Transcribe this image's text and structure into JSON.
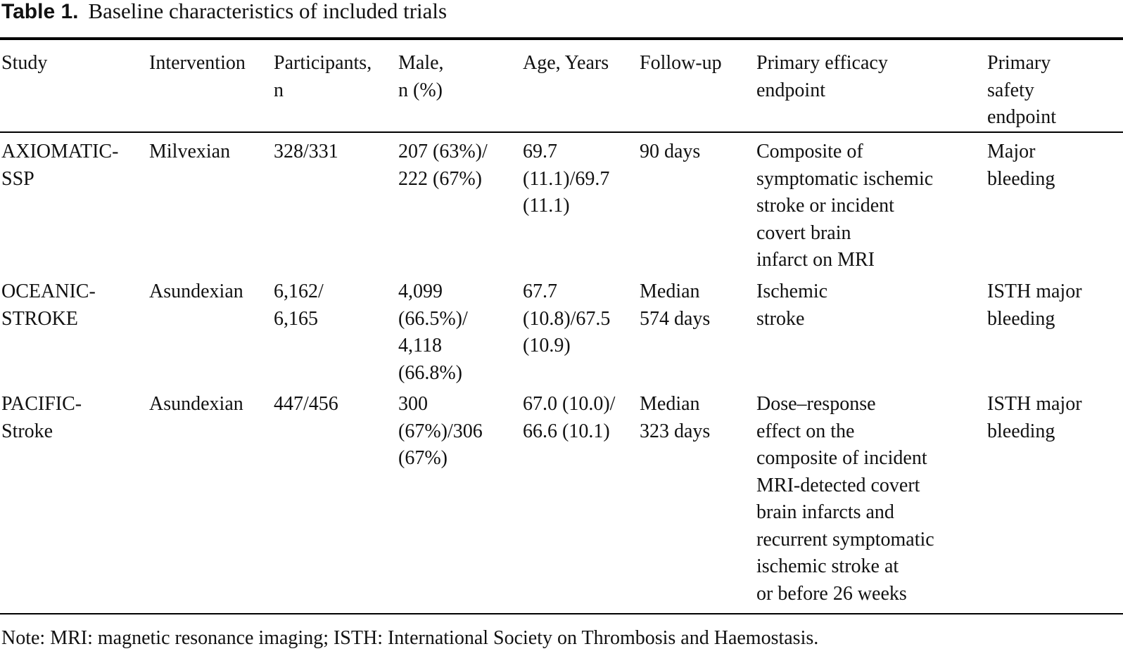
{
  "caption": {
    "label": "Table 1.",
    "title": "Baseline characteristics of included trials"
  },
  "table": {
    "columns": [
      [
        "Study"
      ],
      [
        "Intervention"
      ],
      [
        "Participants,",
        "n"
      ],
      [
        "Male,",
        "n (%)"
      ],
      [
        "Age, Years"
      ],
      [
        "Follow-up"
      ],
      [
        "Primary efficacy",
        "endpoint"
      ],
      [
        "Primary",
        "safety",
        "endpoint"
      ]
    ],
    "rows": [
      {
        "study": [
          "AXIOMATIC-",
          "SSP"
        ],
        "intervention": [
          "Milvexian"
        ],
        "participants": [
          "328/331"
        ],
        "male": [
          "207 (63%)/",
          "222 (67%)"
        ],
        "age": [
          "69.7",
          "(11.1)/69.7",
          "(11.1)"
        ],
        "followup": [
          "90 days"
        ],
        "efficacy": [
          "Composite of",
          "symptomatic ischemic",
          "stroke or incident",
          "covert brain",
          "infarct on MRI"
        ],
        "safety": [
          "Major",
          "bleeding"
        ]
      },
      {
        "study": [
          "OCEANIC-",
          "STROKE"
        ],
        "intervention": [
          "Asundexian"
        ],
        "participants": [
          "6,162/",
          "6,165"
        ],
        "male": [
          "4,099",
          "(66.5%)/",
          "4,118",
          "(66.8%)"
        ],
        "age": [
          "67.7",
          "(10.8)/67.5",
          "(10.9)"
        ],
        "followup": [
          "Median",
          "574 days"
        ],
        "efficacy": [
          "Ischemic",
          "stroke"
        ],
        "safety": [
          "ISTH major",
          "bleeding"
        ]
      },
      {
        "study": [
          "PACIFIC-",
          "Stroke"
        ],
        "intervention": [
          "Asundexian"
        ],
        "participants": [
          "447/456"
        ],
        "male": [
          "300",
          "(67%)/306",
          "(67%)"
        ],
        "age": [
          "67.0 (10.0)/",
          "66.6 (10.1)"
        ],
        "followup": [
          "Median",
          "323 days"
        ],
        "efficacy": [
          "Dose–response",
          "effect on the",
          "composite of incident",
          "MRI-detected covert",
          "brain infarcts and",
          "recurrent symptomatic",
          "ischemic stroke at",
          "or before 26 weeks"
        ],
        "safety": [
          "ISTH major",
          "bleeding"
        ]
      }
    ]
  },
  "note": "Note: MRI: magnetic resonance imaging; ISTH: International Society on Thrombosis and Haemostasis."
}
